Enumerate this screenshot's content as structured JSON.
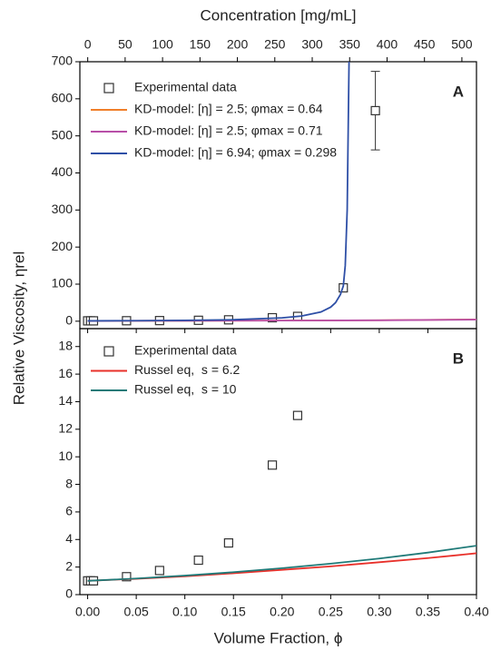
{
  "chart_data": [
    {
      "type": "line",
      "annotation": "A",
      "legend": "upper left",
      "x2label": "Concentration [mg/mL]",
      "x2lim": [
        -10.5,
        519.5
      ],
      "x2ticks": [
        0,
        50,
        100,
        150,
        200,
        250,
        300,
        350,
        400,
        450,
        500
      ],
      "ylabel": "Relative Viscosity, ηrel",
      "xlim": [
        -0.008,
        0.4
      ],
      "ylim": [
        -20,
        700
      ],
      "yticks": [
        0,
        100,
        200,
        300,
        400,
        500,
        600,
        700
      ],
      "series": [
        {
          "name": "Experimental data",
          "color": "#333333",
          "mode": "markers",
          "x": [
            0.0,
            0.003,
            0.006,
            0.04,
            0.074,
            0.114,
            0.145,
            0.19,
            0.216,
            0.263,
            0.296
          ],
          "values": [
            1,
            1,
            1,
            1.3,
            1.7,
            2.5,
            3.75,
            9.4,
            13,
            90,
            568
          ],
          "errors": [
            null,
            null,
            null,
            null,
            null,
            null,
            null,
            null,
            null,
            null,
            106
          ]
        },
        {
          "name": "KD-model: [η] = 2.5; φmax = 0.64",
          "color": "#f07f2a",
          "mode": "lines",
          "x": [
            0,
            0.1,
            0.2,
            0.3,
            0.4
          ],
          "values": [
            1,
            1.3,
            1.8,
            2.7,
            4.8
          ]
        },
        {
          "name": "KD-model: [η] = 2.5; φmax = 0.71",
          "color": "#b84fa8",
          "mode": "lines",
          "x": [
            0,
            0.1,
            0.2,
            0.3,
            0.4
          ],
          "values": [
            1,
            1.3,
            1.7,
            2.5,
            4.3
          ]
        },
        {
          "name": "KD-model: [η] = 6.94; φmax = 0.298",
          "color": "#2e4fa6",
          "mode": "lines",
          "x": [
            0,
            0.05,
            0.1,
            0.15,
            0.2,
            0.22,
            0.24,
            0.25,
            0.255,
            0.26,
            0.263,
            0.265,
            0.267,
            0.269
          ],
          "values": [
            1,
            1.5,
            2.3,
            4,
            9,
            14,
            25,
            38,
            50,
            72,
            95,
            150,
            300,
            720
          ]
        }
      ]
    },
    {
      "type": "line",
      "annotation": "B",
      "legend": "upper left",
      "xlabel": "Volume Fraction, ϕ",
      "xlim": [
        -0.008,
        0.4
      ],
      "xticks": [
        {
          "value": 0,
          "label": "0.00"
        },
        {
          "value": 0.05,
          "label": "0.05"
        },
        {
          "value": 0.1,
          "label": "0.10"
        },
        {
          "value": 0.15,
          "label": "0.15"
        },
        {
          "value": 0.2,
          "label": "0.20"
        },
        {
          "value": 0.25,
          "label": "0.25"
        },
        {
          "value": 0.3,
          "label": "0.30"
        },
        {
          "value": 0.35,
          "label": "0.35"
        },
        {
          "value": 0.4,
          "label": "0.40"
        }
      ],
      "ylim": [
        0,
        19.3
      ],
      "yticks": [
        0,
        2,
        4,
        6,
        8,
        10,
        12,
        14,
        16,
        18
      ],
      "series": [
        {
          "name": "Experimental data",
          "color": "#333333",
          "mode": "markers",
          "x": [
            0.0,
            0.003,
            0.006,
            0.04,
            0.074,
            0.114,
            0.145,
            0.19,
            0.216
          ],
          "values": [
            1,
            1,
            1,
            1.3,
            1.75,
            2.5,
            3.75,
            9.4,
            13.0
          ]
        },
        {
          "name": "Russel eq,  s = 6.2",
          "color": "#e8302a",
          "mode": "lines",
          "x": [
            0,
            0.05,
            0.1,
            0.15,
            0.2,
            0.25,
            0.3,
            0.35,
            0.4
          ],
          "values": [
            1,
            1.15,
            1.33,
            1.55,
            1.8,
            2.05,
            2.35,
            2.65,
            3.0
          ]
        },
        {
          "name": "Russel eq,  s = 10",
          "color": "#1f7a78",
          "mode": "lines",
          "x": [
            0,
            0.05,
            0.1,
            0.15,
            0.2,
            0.25,
            0.3,
            0.35,
            0.4
          ],
          "values": [
            1,
            1.17,
            1.38,
            1.63,
            1.92,
            2.25,
            2.62,
            3.05,
            3.55
          ]
        }
      ]
    }
  ]
}
